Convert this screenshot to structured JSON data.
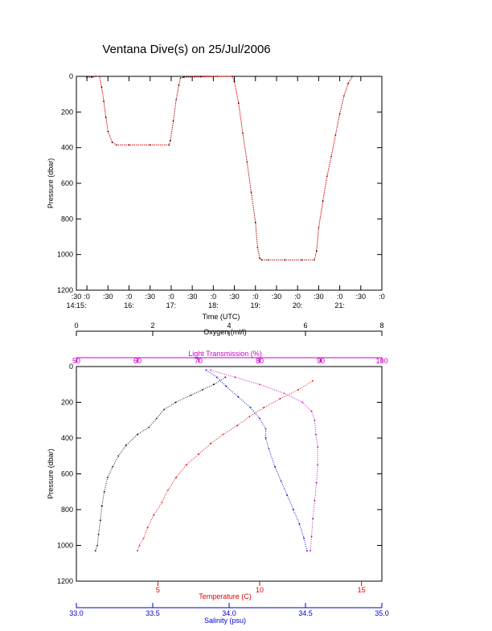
{
  "title": "Ventana Dive(s) on 25/Jul/2006",
  "colors": {
    "black": "#000000",
    "red": "#e00000",
    "blue": "#0000cc",
    "magenta": "#cc00cc"
  },
  "chart_data": [
    {
      "type": "line",
      "title": "Ventana Dive(s) on 25/Jul/2006",
      "xlabel": "Time (UTC)",
      "ylabel": "Pressure (dbar)",
      "x_unit": "hours UTC",
      "xlim": [
        14.25,
        21.5
      ],
      "ylim": [
        1200,
        0
      ],
      "yticks": [
        0,
        200,
        400,
        600,
        800,
        1000,
        1200
      ],
      "xticks_top": [
        {
          "x": 14.25,
          "label": ":30"
        },
        {
          "x": 14.5,
          "label": ":0"
        },
        {
          "x": 15.0,
          "label": ":30"
        },
        {
          "x": 15.5,
          "label": ":0"
        },
        {
          "x": 16.0,
          "label": ":30"
        },
        {
          "x": 16.5,
          "label": ":0"
        },
        {
          "x": 17.0,
          "label": ":30"
        },
        {
          "x": 17.5,
          "label": ":0"
        },
        {
          "x": 18.0,
          "label": ":30"
        },
        {
          "x": 18.5,
          "label": ":0"
        },
        {
          "x": 19.0,
          "label": ":30"
        },
        {
          "x": 19.5,
          "label": ":0"
        },
        {
          "x": 20.0,
          "label": ":30"
        },
        {
          "x": 20.5,
          "label": ":0"
        },
        {
          "x": 21.0,
          "label": ":30"
        },
        {
          "x": 21.5,
          "label": ":0"
        }
      ],
      "xticks_bottom": [
        {
          "x": 14.25,
          "label": "14:15:"
        },
        {
          "x": 15.5,
          "label": "16:"
        },
        {
          "x": 16.5,
          "label": "17:"
        },
        {
          "x": 17.5,
          "label": "18:"
        },
        {
          "x": 18.5,
          "label": "19:"
        },
        {
          "x": 19.5,
          "label": "20:"
        },
        {
          "x": 20.5,
          "label": "21:"
        }
      ],
      "series": [
        {
          "color": "#e00000",
          "x": [
            14.5,
            14.62,
            14.72,
            14.8,
            14.85,
            14.9,
            14.95,
            15.0,
            15.1,
            15.2,
            15.5,
            16.0,
            16.45,
            16.48,
            16.55,
            16.62,
            16.68,
            16.72,
            16.8,
            17.2,
            17.6,
            17.95,
            18.0,
            18.1,
            18.2,
            18.3,
            18.4,
            18.5,
            18.55,
            18.6,
            18.65,
            18.8,
            19.2,
            19.6,
            19.9,
            19.95,
            20.0,
            20.1,
            20.2,
            20.3,
            20.4,
            20.5,
            20.6,
            20.7,
            20.8
          ],
          "y": [
            5,
            5,
            0,
            0,
            60,
            140,
            230,
            310,
            370,
            385,
            385,
            385,
            385,
            360,
            250,
            130,
            50,
            10,
            5,
            3,
            0,
            0,
            30,
            150,
            320,
            480,
            650,
            820,
            960,
            1020,
            1030,
            1030,
            1030,
            1030,
            1030,
            980,
            850,
            700,
            560,
            450,
            330,
            210,
            110,
            40,
            0
          ]
        }
      ]
    },
    {
      "type": "scatter",
      "ylabel": "Pressure (dbar)",
      "ylim": [
        1200,
        0
      ],
      "yticks": [
        0,
        200,
        400,
        600,
        800,
        1000,
        1200
      ],
      "axes": {
        "oxygen": {
          "label": "Oxygen (ml/l)",
          "range": [
            0,
            8
          ],
          "ticks": [
            0,
            2,
            4,
            6,
            8
          ],
          "color": "#000000"
        },
        "light_transmission": {
          "label": "Light Transmission (%)",
          "range": [
            50,
            100
          ],
          "ticks": [
            50,
            60,
            70,
            80,
            90,
            100
          ],
          "color": "#cc00cc"
        },
        "temperature": {
          "label": "Temperature (C)",
          "range": [
            1,
            16
          ],
          "ticks": [
            5,
            10,
            15
          ],
          "color": "#e00000"
        },
        "salinity": {
          "label": "Salinity (psu)",
          "range": [
            33.0,
            35.0
          ],
          "ticks": [
            33.0,
            33.5,
            34.0,
            34.5,
            35.0
          ],
          "tick_labels": [
            "33.0",
            "33.5",
            "34.0",
            "34.5",
            "35.0"
          ],
          "color": "#0000cc"
        }
      },
      "series": [
        {
          "axis": "oxygen",
          "color": "#000000",
          "x": [
            3.9,
            3.6,
            3.3,
            3.0,
            2.6,
            2.3,
            2.1,
            1.9,
            1.6,
            1.3,
            1.1,
            0.95,
            0.82,
            0.73,
            0.67,
            0.63,
            0.58,
            0.55,
            0.5
          ],
          "y": [
            60,
            100,
            130,
            160,
            200,
            240,
            290,
            340,
            380,
            440,
            500,
            560,
            620,
            700,
            780,
            860,
            940,
            1000,
            1030
          ]
        },
        {
          "axis": "temperature",
          "color": "#e00000",
          "x": [
            12.6,
            11.9,
            11.0,
            10.2,
            9.5,
            8.9,
            8.2,
            7.6,
            7.0,
            6.4,
            5.9,
            5.5,
            5.2,
            4.8,
            4.5,
            4.3,
            4.1,
            4.0
          ],
          "y": [
            80,
            130,
            180,
            230,
            280,
            330,
            380,
            430,
            490,
            550,
            620,
            690,
            760,
            830,
            900,
            960,
            1000,
            1030
          ]
        },
        {
          "axis": "salinity",
          "color": "#0000cc",
          "x": [
            33.85,
            33.92,
            33.98,
            34.06,
            34.14,
            34.2,
            34.24,
            34.24,
            34.26,
            34.3,
            34.34,
            34.38,
            34.42,
            34.46,
            34.49,
            34.51
          ],
          "y": [
            20,
            60,
            110,
            170,
            230,
            290,
            350,
            400,
            460,
            560,
            640,
            720,
            800,
            880,
            960,
            1030
          ]
        },
        {
          "axis": "light_transmission",
          "color": "#cc00cc",
          "x": [
            72,
            76,
            80,
            84,
            87,
            88.5,
            89,
            89.2,
            89.5,
            89.5,
            89.3,
            89.0,
            88.7,
            88.5,
            88.3
          ],
          "y": [
            20,
            60,
            100,
            150,
            200,
            250,
            300,
            380,
            450,
            550,
            650,
            750,
            850,
            950,
            1030
          ]
        }
      ]
    }
  ]
}
